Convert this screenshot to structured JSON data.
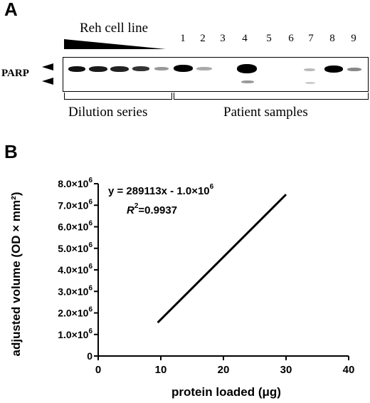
{
  "panel_a": {
    "label": "A",
    "gradient_label": "Reh cell line",
    "protein_label": "PARP",
    "lane_numbers": [
      "1",
      "2",
      "3",
      "4",
      "5",
      "6",
      "7",
      "8",
      "9"
    ],
    "group_labels": [
      "Dilution series",
      "Patient samples"
    ]
  },
  "panel_b": {
    "label": "B",
    "equation": "y = 289113x - 1.0×10",
    "equation_exp": "6",
    "r2_prefix": "R",
    "r2_exp": "2",
    "r2_value": "=0.9937"
  },
  "chart_data": {
    "type": "line",
    "xlabel": "protein loaded (μg)",
    "ylabel": "adjusted volume (OD × mm²)",
    "xlim": [
      0,
      40
    ],
    "ylim": [
      0,
      8000000
    ],
    "xticks": [
      0,
      10,
      20,
      30,
      40
    ],
    "yticks": [
      0,
      1000000,
      2000000,
      3000000,
      4000000,
      5000000,
      6000000,
      7000000,
      8000000
    ],
    "ytick_labels": [
      "0",
      "1.0×10",
      "2.0×10",
      "3.0×10",
      "4.0×10",
      "5.0×10",
      "6.0×10",
      "7.0×10",
      "8.0×10"
    ],
    "ytick_exp": "6",
    "series": [
      {
        "x": [
          9.5,
          30
        ],
        "y": [
          1550000,
          7500000
        ],
        "color": "#000000"
      }
    ]
  }
}
